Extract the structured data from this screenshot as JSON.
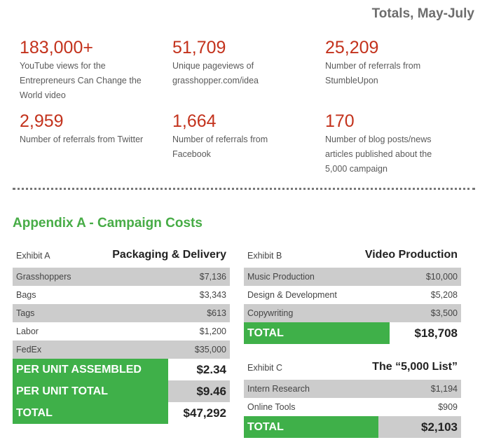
{
  "totals_title": "Totals, May-July",
  "stats": [
    {
      "value": "183,000+",
      "desc": "YouTube views for the Entrepreneurs Can Change the World video"
    },
    {
      "value": "51,709",
      "desc": "Unique pageviews of grasshopper.com/idea"
    },
    {
      "value": "25,209",
      "desc": "Number of referrals from StumbleUpon"
    },
    {
      "value": "2,959",
      "desc": "Number of referrals from Twitter"
    },
    {
      "value": "1,664",
      "desc": "Number of referrals from Facebook"
    },
    {
      "value": "170",
      "desc": "Number of blog posts/news articles published about the 5,000 campaign"
    }
  ],
  "appendix_title": "Appendix A - Campaign Costs",
  "exhibit_a": {
    "label": "Exhibit A",
    "title": "Packaging & Delivery",
    "rows": [
      {
        "label": "Grasshoppers",
        "value": "$7,136"
      },
      {
        "label": "Bags",
        "value": "$3,343"
      },
      {
        "label": "Tags",
        "value": "$613"
      },
      {
        "label": "Labor",
        "value": "$1,200"
      },
      {
        "label": "FedEx",
        "value": "$35,000"
      }
    ],
    "per_unit_assembled": {
      "label": "PER UNIT ASSEMBLED",
      "value": "$2.34"
    },
    "per_unit_total": {
      "label": "PER UNIT TOTAL",
      "value": "$9.46"
    },
    "total": {
      "label": "TOTAL",
      "value": "$47,292"
    }
  },
  "exhibit_b": {
    "label": "Exhibit B",
    "title": "Video Production",
    "rows": [
      {
        "label": "Music Production",
        "value": "$10,000"
      },
      {
        "label": "Design & Development",
        "value": "$5,208"
      },
      {
        "label": "Copywriting",
        "value": "$3,500"
      }
    ],
    "total": {
      "label": "TOTAL",
      "value": "$18,708"
    }
  },
  "exhibit_c": {
    "label": "Exhibit C",
    "title": "The “5,000 List”",
    "rows": [
      {
        "label": "Intern Research",
        "value": "$1,194"
      },
      {
        "label": "Online Tools",
        "value": "$909"
      }
    ],
    "total": {
      "label": "TOTAL",
      "value": "$2,103"
    }
  },
  "colors": {
    "stat_number": "#c3321c",
    "appendix_green": "#47ac46",
    "total_green": "#3fb049",
    "row_shade": "#cccccc"
  }
}
